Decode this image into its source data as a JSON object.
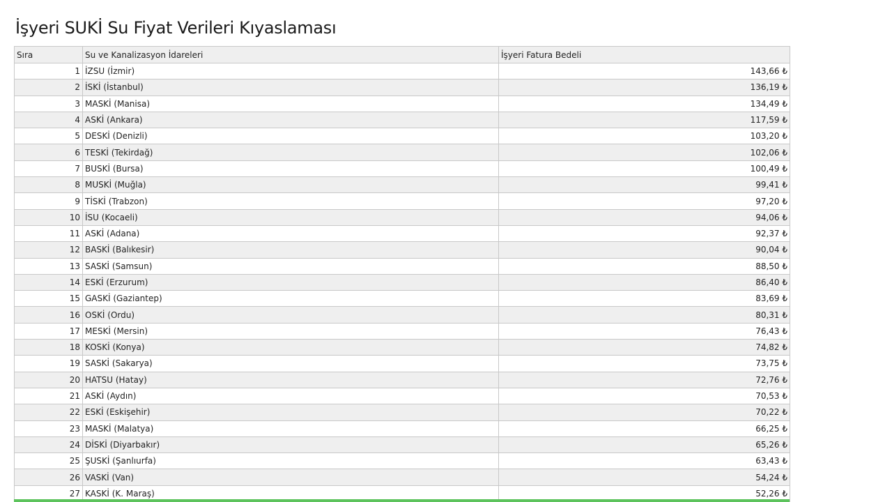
{
  "title": "İşyeri SUKİ Su Fiyat Verileri Kıyaslaması",
  "table": {
    "headers": [
      "Sıra",
      "Su ve Kanalizasyon İdareleri",
      "İşyeri Fatura Bedeli"
    ],
    "rows": [
      {
        "rank": "1",
        "name": "İZSU (İzmir)",
        "value": "143,66 ₺"
      },
      {
        "rank": "2",
        "name": "İSKİ (İstanbul)",
        "value": "136,19 ₺"
      },
      {
        "rank": "3",
        "name": "MASKİ (Manisa)",
        "value": "134,49 ₺"
      },
      {
        "rank": "4",
        "name": "ASKİ (Ankara)",
        "value": "117,59 ₺"
      },
      {
        "rank": "5",
        "name": "DESKİ (Denizli)",
        "value": "103,20 ₺"
      },
      {
        "rank": "6",
        "name": "TESKİ (Tekirdağ)",
        "value": "102,06 ₺"
      },
      {
        "rank": "7",
        "name": "BUSKİ (Bursa)",
        "value": "100,49 ₺"
      },
      {
        "rank": "8",
        "name": "MUSKİ (Muğla)",
        "value": "99,41 ₺"
      },
      {
        "rank": "9",
        "name": "TİSKİ (Trabzon)",
        "value": "97,20 ₺"
      },
      {
        "rank": "10",
        "name": "İSU (Kocaeli)",
        "value": "94,06 ₺"
      },
      {
        "rank": "11",
        "name": "ASKİ (Adana)",
        "value": "92,37 ₺"
      },
      {
        "rank": "12",
        "name": "BASKİ (Balıkesir)",
        "value": "90,04 ₺"
      },
      {
        "rank": "13",
        "name": "SASKİ (Samsun)",
        "value": "88,50 ₺"
      },
      {
        "rank": "14",
        "name": "ESKİ (Erzurum)",
        "value": "86,40 ₺"
      },
      {
        "rank": "15",
        "name": "GASKİ (Gaziantep)",
        "value": "83,69 ₺"
      },
      {
        "rank": "16",
        "name": "OSKİ (Ordu)",
        "value": "80,31 ₺"
      },
      {
        "rank": "17",
        "name": "MESKİ (Mersin)",
        "value": "76,43 ₺"
      },
      {
        "rank": "18",
        "name": "KOSKİ (Konya)",
        "value": "74,82 ₺"
      },
      {
        "rank": "19",
        "name": "SASKİ (Sakarya)",
        "value": "73,75 ₺"
      },
      {
        "rank": "20",
        "name": "HATSU (Hatay)",
        "value": "72,76 ₺"
      },
      {
        "rank": "21",
        "name": "ASKİ (Aydın)",
        "value": "70,53 ₺"
      },
      {
        "rank": "22",
        "name": "ESKİ (Eskişehir)",
        "value": "70,22 ₺"
      },
      {
        "rank": "23",
        "name": "MASKİ (Malatya)",
        "value": "66,25 ₺"
      },
      {
        "rank": "24",
        "name": "DİSKİ (Diyarbakır)",
        "value": "65,26 ₺"
      },
      {
        "rank": "25",
        "name": "ŞUSKİ (Şanlıurfa)",
        "value": "63,43 ₺"
      },
      {
        "rank": "26",
        "name": "VASKİ (Van)",
        "value": "54,24 ₺"
      },
      {
        "rank": "27",
        "name": "KASKİ (K. Maraş)",
        "value": "52,26 ₺"
      }
    ]
  }
}
